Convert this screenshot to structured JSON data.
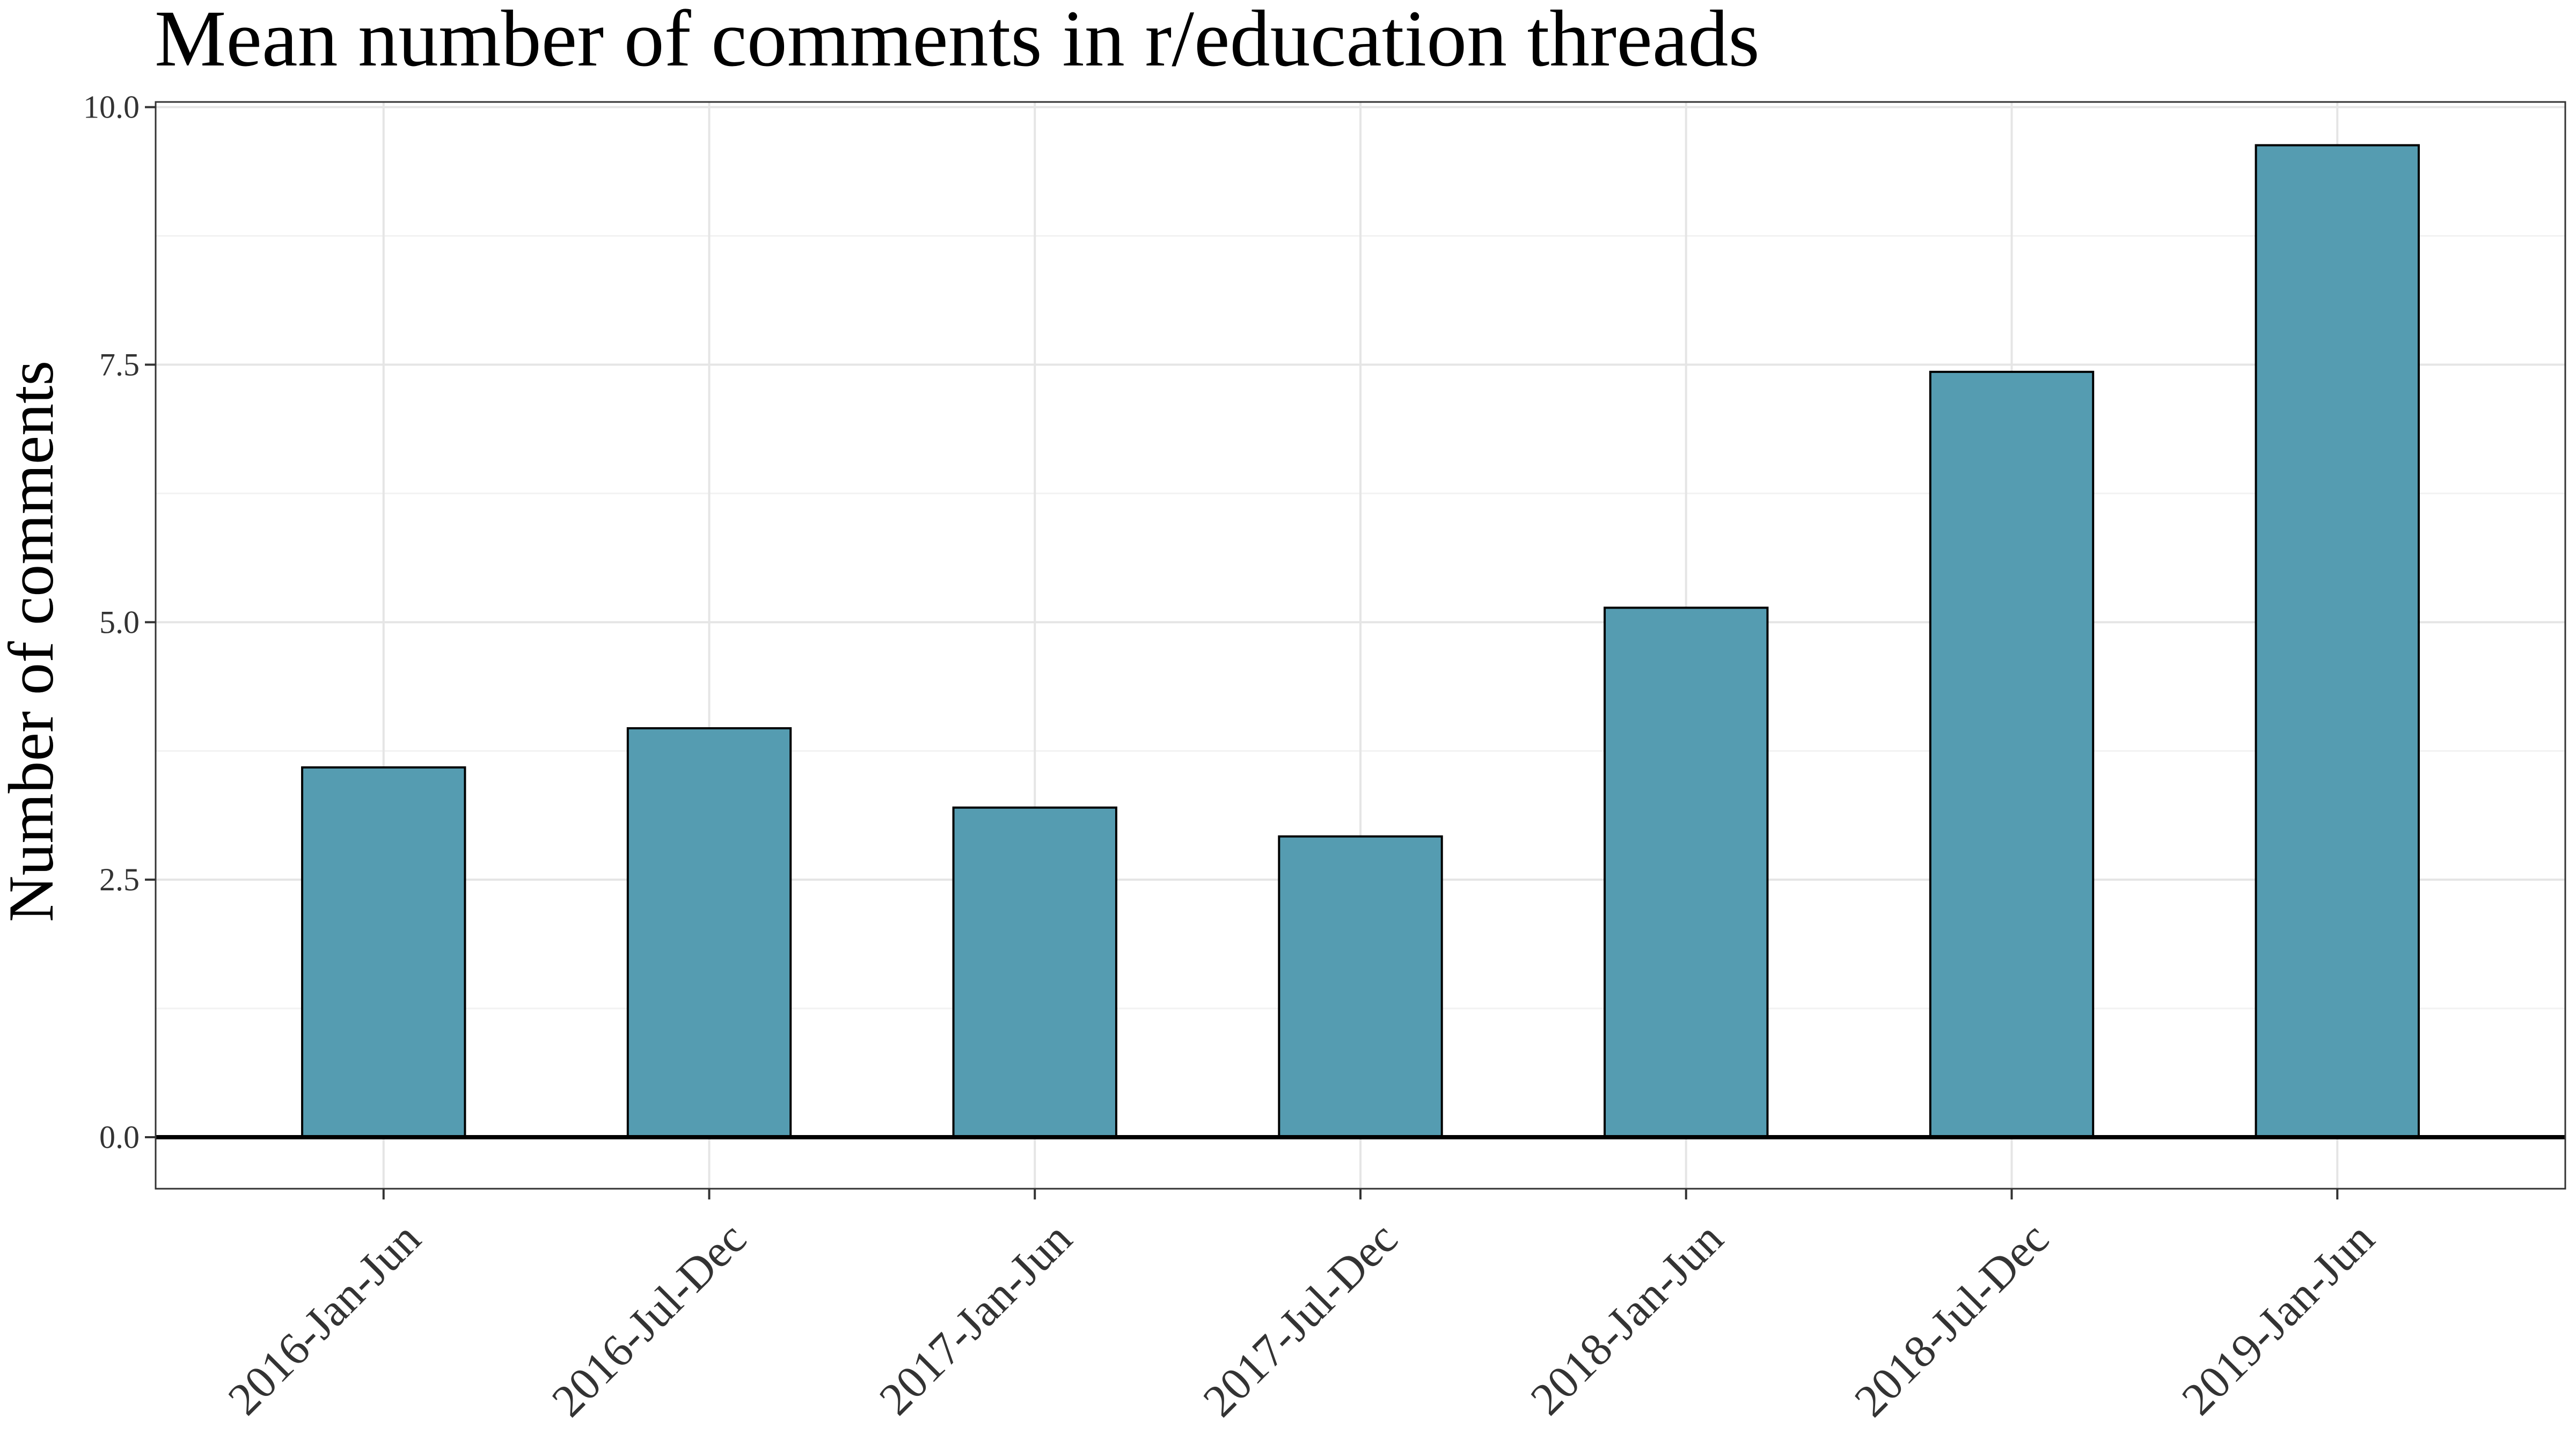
{
  "chart_data": {
    "type": "bar",
    "title": "Mean number of comments in r/education threads",
    "xlabel": "",
    "ylabel": "Number of comments",
    "categories": [
      "2016-Jan-Jun",
      "2016-Jul-Dec",
      "2017-Jan-Jun",
      "2017-Jul-Dec",
      "2018-Jan-Jun",
      "2018-Jul-Dec",
      "2019-Jan-Jun"
    ],
    "values": [
      3.59,
      3.97,
      3.2,
      2.92,
      5.14,
      7.43,
      9.63
    ],
    "ylim": [
      -0.5,
      10.05
    ],
    "yticks": [
      0.0,
      2.5,
      5.0,
      7.5,
      10.0
    ],
    "ytick_labels": [
      "0.0",
      "2.5",
      "5.0",
      "7.5",
      "10.0"
    ],
    "grid": true,
    "bar_color": "#559CB1",
    "bar_border_color": "#000000",
    "baseline": 0
  }
}
